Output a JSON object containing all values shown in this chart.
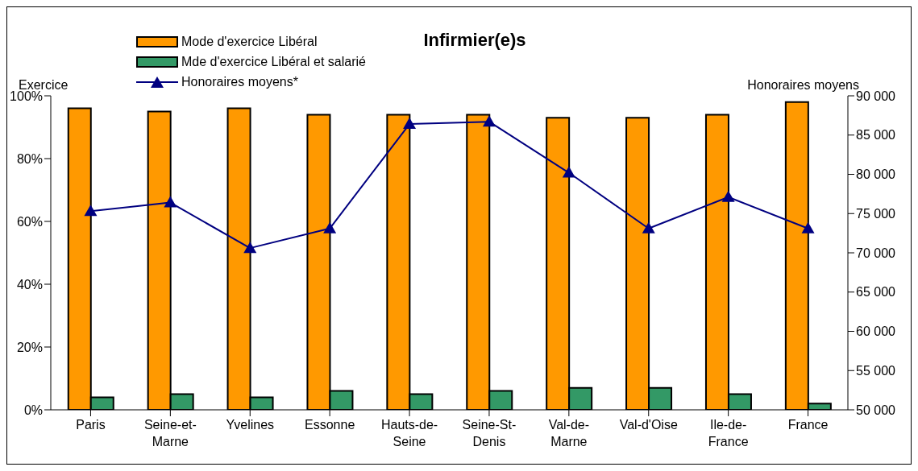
{
  "chart_data": {
    "type": "bar",
    "title": "Infirmier(e)s",
    "ylabel": "Exercice",
    "y2label": "Honoraires moyens",
    "categories": [
      "Paris",
      "Seine-et-Marne",
      "Yvelines",
      "Essonne",
      "Hauts-de-Seine",
      "Seine-St-Denis",
      "Val-de-Marne",
      "Val-d'Oise",
      "Ile-de-France",
      "France"
    ],
    "series": [
      {
        "name": "Mode d'exercice Libéral",
        "color": "#ff9900",
        "values": [
          96,
          95,
          96,
          94,
          94,
          94,
          93,
          93,
          94,
          98
        ]
      },
      {
        "name": "Mde d'exercice Libéral et salarié",
        "color": "#339966",
        "values": [
          4,
          5,
          4,
          6,
          5,
          6,
          7,
          7,
          5,
          2
        ]
      },
      {
        "name": "Honoraires moyens*",
        "type": "line",
        "axis": "y2",
        "color": "#000080",
        "marker": "triangle",
        "values": [
          75300,
          76400,
          70600,
          73100,
          86400,
          86700,
          80200,
          73100,
          77100,
          73100
        ]
      }
    ],
    "ylim": [
      0,
      100
    ],
    "yticks": [
      {
        "value": 0,
        "label": "0%"
      },
      {
        "value": 20,
        "label": "20%"
      },
      {
        "value": 40,
        "label": "40%"
      },
      {
        "value": 60,
        "label": "60%"
      },
      {
        "value": 80,
        "label": "80%"
      },
      {
        "value": 100,
        "label": "100%"
      }
    ],
    "y2lim": [
      50000,
      90000
    ],
    "y2ticks": [
      {
        "value": 50000,
        "label": "50 000"
      },
      {
        "value": 55000,
        "label": "55 000"
      },
      {
        "value": 60000,
        "label": "60 000"
      },
      {
        "value": 65000,
        "label": "65 000"
      },
      {
        "value": 70000,
        "label": "70 000"
      },
      {
        "value": 75000,
        "label": "75 000"
      },
      {
        "value": 80000,
        "label": "80 000"
      },
      {
        "value": 85000,
        "label": "85 000"
      },
      {
        "value": 90000,
        "label": "90 000"
      }
    ],
    "grid": false,
    "legend": "top left"
  }
}
